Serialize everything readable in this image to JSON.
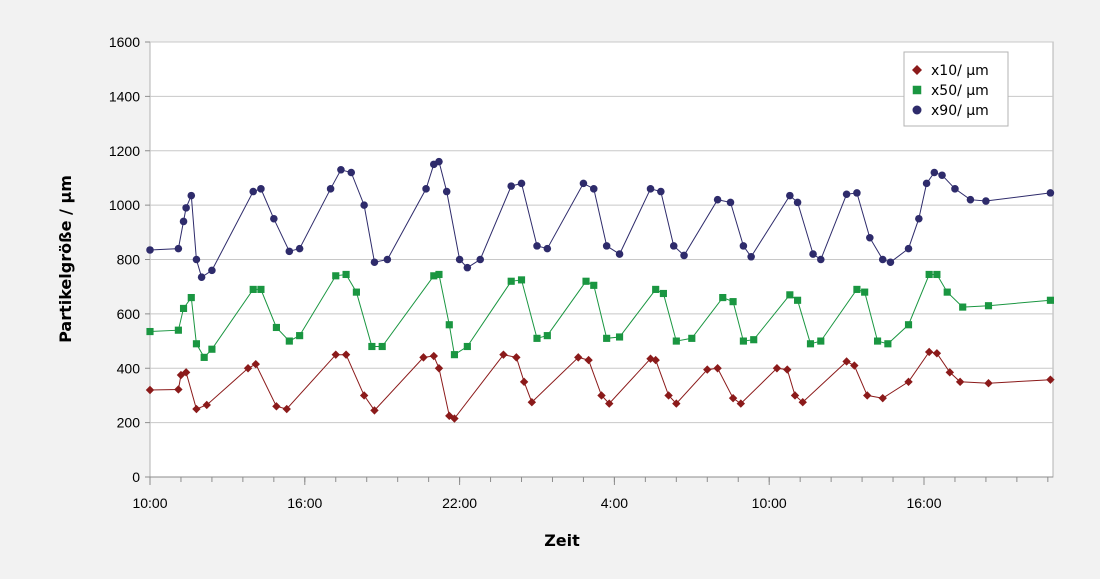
{
  "chart_data": {
    "type": "scatter",
    "title": "",
    "xlabel": "Zeit",
    "ylabel": "Partikelgröße / µm",
    "ylim": [
      0,
      1600
    ],
    "yticks": [
      0,
      200,
      400,
      600,
      800,
      1000,
      1200,
      1400,
      1600
    ],
    "ytick_labels": [
      "0",
      "200",
      "400",
      "600",
      "800",
      "1000",
      "1200",
      "1400",
      "1600"
    ],
    "x_unit": "hours since 10:00",
    "xlim": [
      0,
      35
    ],
    "xticks_major": [
      0,
      6,
      12,
      18,
      24,
      30
    ],
    "xtick_labels": [
      "10:00",
      "16:00",
      "22:00",
      "4:00",
      "10:00",
      "16:00"
    ],
    "minor_tick_step": 1.2,
    "grid": {
      "horizontal": true,
      "vertical": false
    },
    "legend_position": "top-right",
    "series": [
      {
        "name": "x10/ µm",
        "marker": "diamond",
        "color": "#8b1a1a",
        "points": [
          [
            0,
            320
          ],
          [
            1.1,
            322
          ],
          [
            1.2,
            375
          ],
          [
            1.4,
            385
          ],
          [
            1.8,
            250
          ],
          [
            2.2,
            265
          ],
          [
            3.8,
            400
          ],
          [
            4.1,
            415
          ],
          [
            4.9,
            260
          ],
          [
            5.3,
            250
          ],
          [
            7.2,
            450
          ],
          [
            7.6,
            450
          ],
          [
            8.3,
            300
          ],
          [
            8.7,
            245
          ],
          [
            10.6,
            440
          ],
          [
            11.0,
            445
          ],
          [
            11.2,
            400
          ],
          [
            11.6,
            225
          ],
          [
            11.8,
            215
          ],
          [
            13.7,
            450
          ],
          [
            14.2,
            440
          ],
          [
            14.5,
            350
          ],
          [
            14.8,
            275
          ],
          [
            16.6,
            440
          ],
          [
            17.0,
            430
          ],
          [
            17.5,
            300
          ],
          [
            17.8,
            270
          ],
          [
            19.4,
            435
          ],
          [
            19.6,
            430
          ],
          [
            20.1,
            300
          ],
          [
            20.4,
            270
          ],
          [
            21.6,
            395
          ],
          [
            22.0,
            400
          ],
          [
            22.6,
            290
          ],
          [
            22.9,
            270
          ],
          [
            24.3,
            400
          ],
          [
            24.7,
            395
          ],
          [
            25.0,
            300
          ],
          [
            25.3,
            275
          ],
          [
            27.0,
            425
          ],
          [
            27.3,
            410
          ],
          [
            27.8,
            300
          ],
          [
            28.4,
            290
          ],
          [
            29.4,
            350
          ],
          [
            30.2,
            460
          ],
          [
            30.5,
            455
          ],
          [
            31.0,
            385
          ],
          [
            31.4,
            350
          ],
          [
            32.5,
            345
          ],
          [
            34.9,
            358
          ]
        ]
      },
      {
        "name": "x50/ µm",
        "marker": "square",
        "color": "#1a9641",
        "points": [
          [
            0,
            535
          ],
          [
            1.1,
            540
          ],
          [
            1.3,
            620
          ],
          [
            1.6,
            660
          ],
          [
            1.8,
            490
          ],
          [
            2.1,
            440
          ],
          [
            2.4,
            470
          ],
          [
            4.0,
            690
          ],
          [
            4.3,
            690
          ],
          [
            4.9,
            550
          ],
          [
            5.4,
            500
          ],
          [
            5.8,
            520
          ],
          [
            7.2,
            740
          ],
          [
            7.6,
            745
          ],
          [
            8.0,
            680
          ],
          [
            8.6,
            480
          ],
          [
            9.0,
            480
          ],
          [
            11.0,
            740
          ],
          [
            11.2,
            745
          ],
          [
            11.6,
            560
          ],
          [
            11.8,
            450
          ],
          [
            12.3,
            480
          ],
          [
            14.0,
            720
          ],
          [
            14.4,
            725
          ],
          [
            15.0,
            510
          ],
          [
            15.4,
            520
          ],
          [
            16.9,
            720
          ],
          [
            17.2,
            705
          ],
          [
            17.7,
            510
          ],
          [
            18.2,
            515
          ],
          [
            19.6,
            690
          ],
          [
            19.9,
            675
          ],
          [
            20.4,
            500
          ],
          [
            21.0,
            510
          ],
          [
            22.2,
            660
          ],
          [
            22.6,
            645
          ],
          [
            23.0,
            500
          ],
          [
            23.4,
            505
          ],
          [
            24.8,
            670
          ],
          [
            25.1,
            650
          ],
          [
            25.6,
            490
          ],
          [
            26.0,
            500
          ],
          [
            27.4,
            690
          ],
          [
            27.7,
            680
          ],
          [
            28.2,
            500
          ],
          [
            28.6,
            490
          ],
          [
            29.4,
            560
          ],
          [
            30.2,
            745
          ],
          [
            30.5,
            745
          ],
          [
            30.9,
            680
          ],
          [
            31.5,
            625
          ],
          [
            32.5,
            630
          ],
          [
            34.9,
            650
          ]
        ]
      },
      {
        "name": "x90/ µm",
        "marker": "circle",
        "color": "#2e2b6b",
        "points": [
          [
            0,
            835
          ],
          [
            1.1,
            840
          ],
          [
            1.3,
            940
          ],
          [
            1.4,
            990
          ],
          [
            1.6,
            1035
          ],
          [
            1.8,
            800
          ],
          [
            2.0,
            735
          ],
          [
            2.4,
            760
          ],
          [
            4.0,
            1050
          ],
          [
            4.3,
            1060
          ],
          [
            4.8,
            950
          ],
          [
            5.4,
            830
          ],
          [
            5.8,
            840
          ],
          [
            7.0,
            1060
          ],
          [
            7.4,
            1130
          ],
          [
            7.8,
            1120
          ],
          [
            8.3,
            1000
          ],
          [
            8.7,
            790
          ],
          [
            9.2,
            800
          ],
          [
            10.7,
            1060
          ],
          [
            11.0,
            1150
          ],
          [
            11.2,
            1160
          ],
          [
            11.5,
            1050
          ],
          [
            12.0,
            800
          ],
          [
            12.3,
            770
          ],
          [
            12.8,
            800
          ],
          [
            14.0,
            1070
          ],
          [
            14.4,
            1080
          ],
          [
            15.0,
            850
          ],
          [
            15.4,
            840
          ],
          [
            16.8,
            1080
          ],
          [
            17.2,
            1060
          ],
          [
            17.7,
            850
          ],
          [
            18.2,
            820
          ],
          [
            19.4,
            1060
          ],
          [
            19.8,
            1050
          ],
          [
            20.3,
            850
          ],
          [
            20.7,
            815
          ],
          [
            22.0,
            1020
          ],
          [
            22.5,
            1010
          ],
          [
            23.0,
            850
          ],
          [
            23.3,
            810
          ],
          [
            24.8,
            1035
          ],
          [
            25.1,
            1010
          ],
          [
            25.7,
            820
          ],
          [
            26.0,
            800
          ],
          [
            27.0,
            1040
          ],
          [
            27.4,
            1045
          ],
          [
            27.9,
            880
          ],
          [
            28.4,
            800
          ],
          [
            28.7,
            790
          ],
          [
            29.4,
            840
          ],
          [
            29.8,
            950
          ],
          [
            30.1,
            1080
          ],
          [
            30.4,
            1120
          ],
          [
            30.7,
            1110
          ],
          [
            31.2,
            1060
          ],
          [
            31.8,
            1020
          ],
          [
            32.4,
            1015
          ],
          [
            34.9,
            1045
          ]
        ]
      }
    ]
  }
}
